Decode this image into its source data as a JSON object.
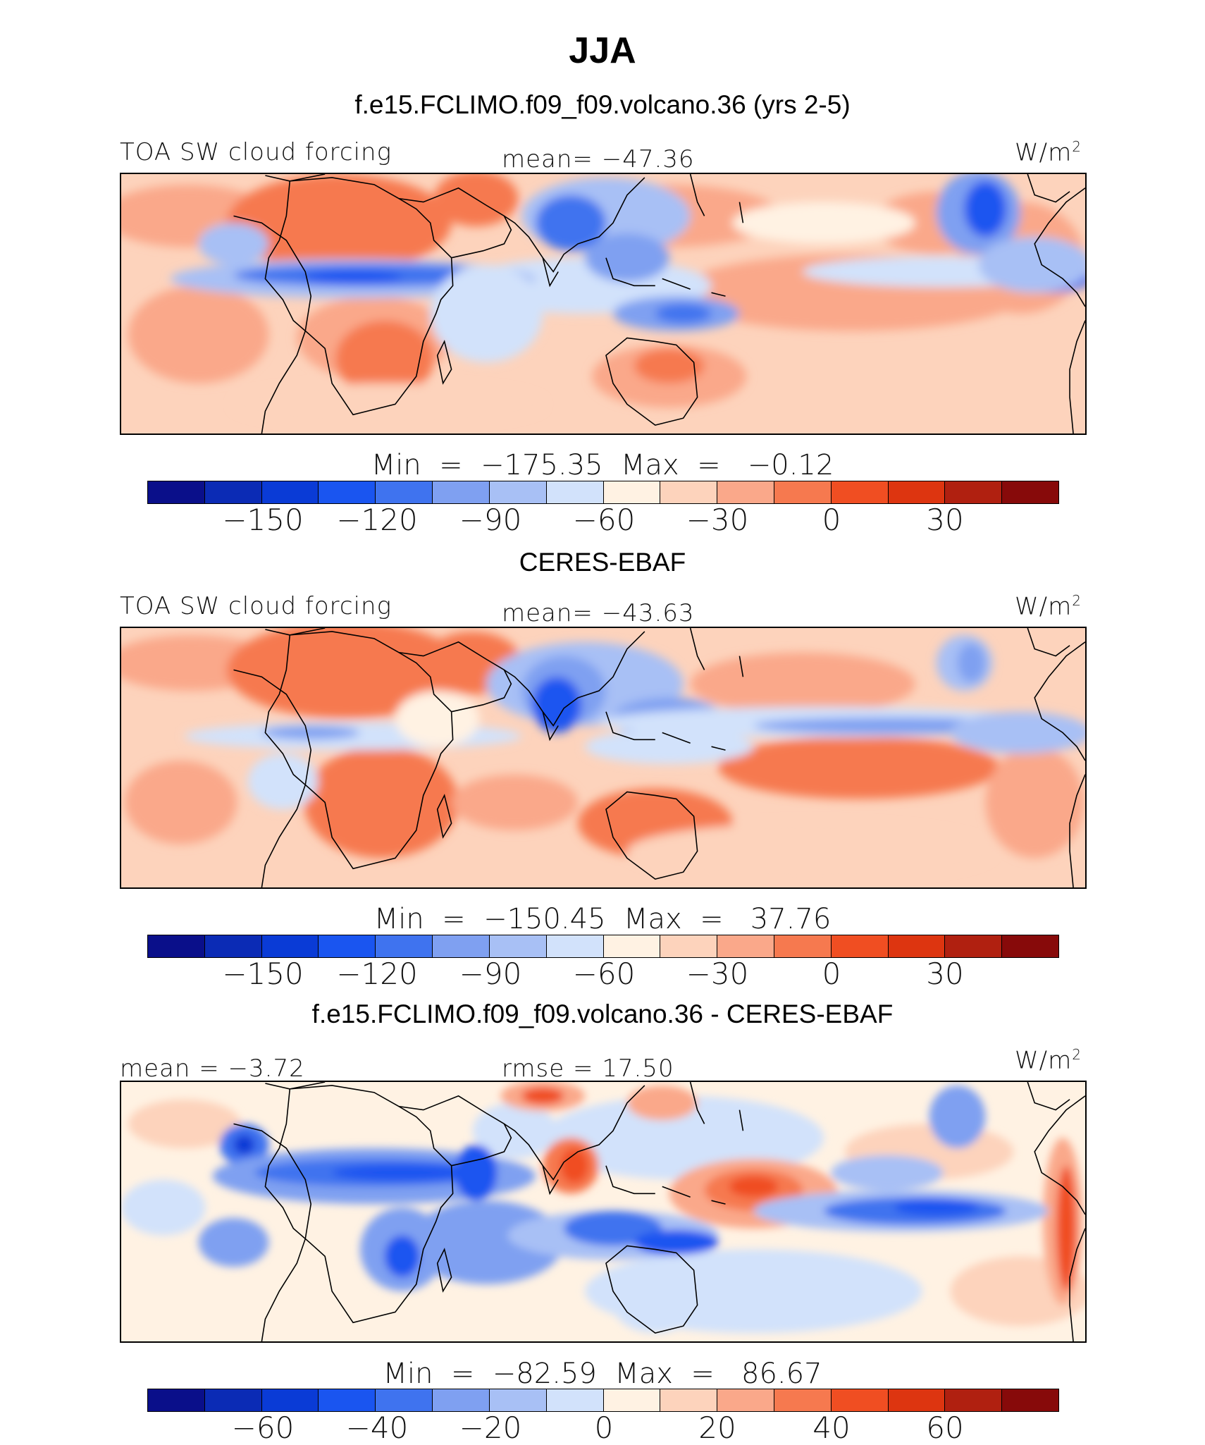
{
  "figure_title": "JJA",
  "units": "W/m",
  "units_sup": "2",
  "colorbar_colors_abs": [
    "#0a0f8a",
    "#0b2bb5",
    "#0a3bd6",
    "#1a55f0",
    "#3f73ef",
    "#7fa0f1",
    "#a8c0f5",
    "#d2e2fb",
    "#fff2e3",
    "#fdd3bc",
    "#faa88a",
    "#f6794f",
    "#f04e22",
    "#dd3510",
    "#b02010",
    "#870a0a"
  ],
  "panels": [
    {
      "title": "f.e15.FCLIMO.f09_f09.volcano.36 (yrs 2-5)",
      "left_label": "TOA SW cloud forcing",
      "center_label": "mean=  −47.36",
      "minmax": "Min  =  −175.35  Max  =   −0.12",
      "ticks": [
        "−150",
        "−120",
        "−90",
        "−60",
        "−30",
        "0",
        "30"
      ]
    },
    {
      "title": "CERES-EBAF",
      "left_label": "TOA SW cloud forcing",
      "center_label": "mean=  −43.63",
      "minmax": "Min  =  −150.45  Max  =   37.76",
      "ticks": [
        "−150",
        "−120",
        "−90",
        "−60",
        "−30",
        "0",
        "30"
      ]
    },
    {
      "title": "f.e15.FCLIMO.f09_f09.volcano.36 - CERES-EBAF",
      "left_label": "mean  =   −3.72",
      "center_label": "rmse  =   17.50",
      "minmax": "Min  =  −82.59  Max  =   86.67",
      "ticks": [
        "−60",
        "−40",
        "−20",
        "0",
        "20",
        "40",
        "60"
      ]
    }
  ]
}
